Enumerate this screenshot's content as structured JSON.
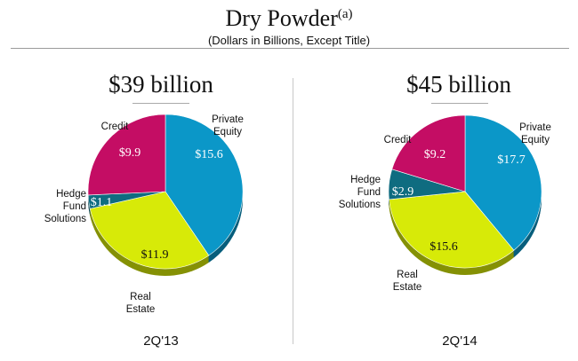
{
  "header": {
    "title": "Dry Powder",
    "title_superscript": "(a)",
    "subtitle": "(Dollars in Billions, Except Title)"
  },
  "colors": {
    "private_equity": "#0b97c8",
    "real_estate": "#d7ea08",
    "hedge_fund_solutions": "#0f6c80",
    "credit": "#c40d64"
  },
  "chart_data": [
    {
      "type": "pie",
      "total_label": "$39 billion",
      "period_label": "2Q'13",
      "slices": [
        {
          "key": "private_equity",
          "name": "Private Equity",
          "label_lines": [
            "Private",
            "Equity"
          ],
          "value": 15.6,
          "value_label": "$15.6"
        },
        {
          "key": "real_estate",
          "name": "Real Estate",
          "label_lines": [
            "Real",
            "Estate"
          ],
          "value": 11.9,
          "value_label": "$11.9"
        },
        {
          "key": "hedge_fund_solutions",
          "name": "Hedge Fund Solutions",
          "label_lines": [
            "Hedge",
            "Fund",
            "Solutions"
          ],
          "value": 1.1,
          "value_label": "$1.1"
        },
        {
          "key": "credit",
          "name": "Credit",
          "label_lines": [
            "Credit"
          ],
          "value": 9.9,
          "value_label": "$9.9"
        }
      ]
    },
    {
      "type": "pie",
      "total_label": "$45 billion",
      "period_label": "2Q'14",
      "slices": [
        {
          "key": "private_equity",
          "name": "Private Equity",
          "label_lines": [
            "Private",
            "Equity"
          ],
          "value": 17.7,
          "value_label": "$17.7"
        },
        {
          "key": "real_estate",
          "name": "Real Estate",
          "label_lines": [
            "Real",
            "Estate"
          ],
          "value": 15.6,
          "value_label": "$15.6"
        },
        {
          "key": "hedge_fund_solutions",
          "name": "Hedge Fund Solutions",
          "label_lines": [
            "Hedge",
            "Fund",
            "Solutions"
          ],
          "value": 2.9,
          "value_label": "$2.9"
        },
        {
          "key": "credit",
          "name": "Credit",
          "label_lines": [
            "Credit"
          ],
          "value": 9.2,
          "value_label": "$9.2"
        }
      ]
    }
  ]
}
